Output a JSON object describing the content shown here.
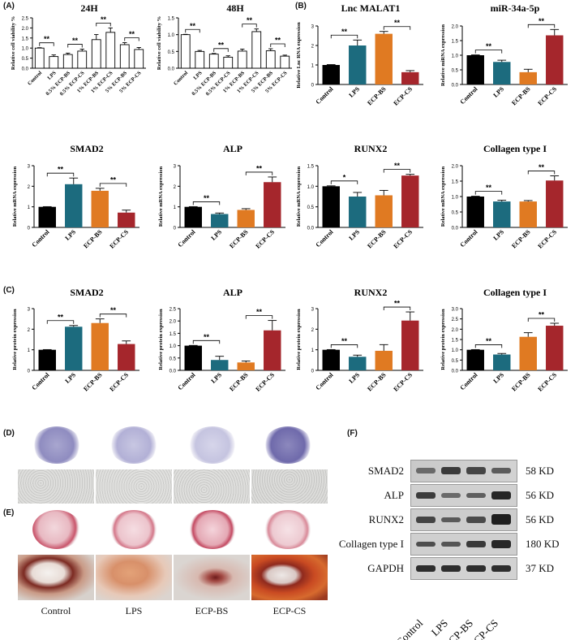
{
  "panels": {
    "A": "(A)",
    "B": "(B)",
    "C": "(C)",
    "D": "(D)",
    "E": "(E)",
    "F": "(F)"
  },
  "colors": {
    "control": "#000000",
    "lps": "#1c6b7e",
    "ecp_bs": "#e07a22",
    "ecp_cs": "#a5262c",
    "open": "#ffffff"
  },
  "chart_data": [
    {
      "id": "a24",
      "type": "bar",
      "title": "24H",
      "ylabel": "Relative cell viability %",
      "ylim": [
        0,
        2.5
      ],
      "yticks": [
        0.0,
        0.5,
        1.0,
        1.5,
        2.0,
        2.5
      ],
      "categories": [
        "Control",
        "LPS",
        "0.5% ECP-BS",
        "0.5% ECP-CS",
        "1% ECP-BS",
        "1% ECP-CS",
        "5% ECP-BS",
        "5% ECP-CS"
      ],
      "values": [
        1.0,
        0.58,
        0.68,
        0.85,
        1.42,
        1.78,
        1.17,
        0.93
      ],
      "errors": [
        0.02,
        0.08,
        0.07,
        0.1,
        0.25,
        0.22,
        0.1,
        0.1
      ],
      "fill": "open",
      "significance": [
        [
          "0",
          "1",
          "**"
        ],
        [
          "2",
          "3",
          "**"
        ],
        [
          "4",
          "5",
          "**"
        ],
        [
          "6",
          "7",
          "**"
        ]
      ]
    },
    {
      "id": "a48",
      "type": "bar",
      "title": "48H",
      "ylabel": "Relative cell viability %",
      "ylim": [
        0,
        1.5
      ],
      "yticks": [
        0.0,
        0.5,
        1.0,
        1.5
      ],
      "categories": [
        "Control",
        "LPS",
        "0.5% ECP-BS",
        "0.5% ECP-CS",
        "1% ECP-BS",
        "1% ECP-CS",
        "5% ECP-BS",
        "5% ECP-CS"
      ],
      "values": [
        1.0,
        0.5,
        0.42,
        0.33,
        0.51,
        1.09,
        0.52,
        0.36
      ],
      "errors": [
        0.01,
        0.03,
        0.02,
        0.04,
        0.06,
        0.08,
        0.06,
        0.03
      ],
      "fill": "open",
      "significance": [
        [
          "0",
          "1",
          "**"
        ],
        [
          "2",
          "3",
          "**"
        ],
        [
          "4",
          "5",
          "**"
        ],
        [
          "6",
          "7",
          "**"
        ]
      ]
    },
    {
      "id": "malat1",
      "type": "bar",
      "title": "Lnc MALAT1",
      "ylabel": "Relative Lnc RNA expression",
      "ylim": [
        0,
        3
      ],
      "yticks": [
        0,
        1,
        2,
        3
      ],
      "categories": [
        "Control",
        "LPS",
        "ECP-BS",
        "ECP-CS"
      ],
      "values": [
        1.0,
        2.0,
        2.6,
        0.63
      ],
      "errors": [
        0.02,
        0.28,
        0.12,
        0.08
      ],
      "fill": "groups",
      "significance": [
        [
          "0",
          "1",
          "**"
        ],
        [
          "2",
          "3",
          "**"
        ]
      ]
    },
    {
      "id": "mir34",
      "type": "bar",
      "title": "miR-34a-5p",
      "ylabel": "Relative miRNA expression",
      "ylim": [
        0,
        2.0
      ],
      "yticks": [
        0.0,
        0.5,
        1.0,
        1.5,
        2.0
      ],
      "categories": [
        "Control",
        "LPS",
        "ECP-BS",
        "ECP-CS"
      ],
      "values": [
        1.0,
        0.77,
        0.42,
        1.68
      ],
      "errors": [
        0.01,
        0.06,
        0.1,
        0.2
      ],
      "fill": "groups",
      "significance": [
        [
          "0",
          "1",
          "**"
        ],
        [
          "2",
          "3",
          "**"
        ]
      ]
    },
    {
      "id": "smad2m",
      "type": "bar",
      "title": "SMAD2",
      "ylabel": "Relative mRNA expression",
      "ylim": [
        0,
        3
      ],
      "yticks": [
        0,
        1,
        2,
        3
      ],
      "categories": [
        "Control",
        "LPS",
        "ECP-BS",
        "ECP-CS"
      ],
      "values": [
        1.0,
        2.1,
        1.78,
        0.72
      ],
      "errors": [
        0.01,
        0.3,
        0.12,
        0.12
      ],
      "fill": "groups",
      "significance": [
        [
          "0",
          "1",
          "**"
        ],
        [
          "2",
          "3",
          "**"
        ]
      ]
    },
    {
      "id": "alpm",
      "type": "bar",
      "title": "ALP",
      "ylabel": "Relative mRNA expression",
      "ylim": [
        0,
        3
      ],
      "yticks": [
        0,
        1,
        2,
        3
      ],
      "categories": [
        "Control",
        "LPS",
        "ECP-BS",
        "ECP-CS"
      ],
      "values": [
        1.0,
        0.65,
        0.85,
        2.2
      ],
      "errors": [
        0.01,
        0.05,
        0.06,
        0.25
      ],
      "fill": "groups",
      "significance": [
        [
          "0",
          "1",
          "**"
        ],
        [
          "2",
          "3",
          "**"
        ]
      ]
    },
    {
      "id": "runx2m",
      "type": "bar",
      "title": "RUNX2",
      "ylabel": "Relative mRNA expression",
      "ylim": [
        0,
        1.5
      ],
      "yticks": [
        0.0,
        0.5,
        1.0,
        1.5
      ],
      "categories": [
        "Control",
        "LPS",
        "ECP-BS",
        "ECP-CS"
      ],
      "values": [
        1.0,
        0.75,
        0.78,
        1.26
      ],
      "errors": [
        0.01,
        0.1,
        0.12,
        0.03
      ],
      "fill": "groups",
      "significance": [
        [
          "0",
          "1",
          "*"
        ],
        [
          "2",
          "3",
          "**"
        ]
      ]
    },
    {
      "id": "colm",
      "type": "bar",
      "title": "Collagen type I",
      "ylabel": "Relative mRNA expression",
      "ylim": [
        0,
        2.0
      ],
      "yticks": [
        0.0,
        0.5,
        1.0,
        1.5,
        2.0
      ],
      "categories": [
        "Control",
        "LPS",
        "ECP-BS",
        "ECP-CS"
      ],
      "values": [
        1.0,
        0.84,
        0.84,
        1.52
      ],
      "errors": [
        0.01,
        0.04,
        0.03,
        0.15
      ],
      "fill": "groups",
      "significance": [
        [
          "0",
          "1",
          "**"
        ],
        [
          "2",
          "3",
          "**"
        ]
      ]
    },
    {
      "id": "smad2p",
      "type": "bar",
      "title": "SMAD2",
      "ylabel": "Relative protein expression",
      "ylim": [
        0,
        3
      ],
      "yticks": [
        0,
        1,
        2,
        3
      ],
      "categories": [
        "Control",
        "LPS",
        "ECP-BS",
        "ECP-CS"
      ],
      "values": [
        1.0,
        2.12,
        2.3,
        1.28
      ],
      "errors": [
        0.01,
        0.06,
        0.2,
        0.15
      ],
      "fill": "groups",
      "significance": [
        [
          "0",
          "1",
          "**"
        ],
        [
          "2",
          "3",
          "**"
        ]
      ]
    },
    {
      "id": "alpp",
      "type": "bar",
      "title": "ALP",
      "ylabel": "Relative protein expression",
      "ylim": [
        0,
        2.5
      ],
      "yticks": [
        0.0,
        0.5,
        1.0,
        1.5,
        2.0,
        2.5
      ],
      "categories": [
        "Control",
        "LPS",
        "ECP-BS",
        "ECP-CS"
      ],
      "values": [
        1.0,
        0.42,
        0.32,
        1.62
      ],
      "errors": [
        0.01,
        0.15,
        0.06,
        0.4
      ],
      "fill": "groups",
      "significance": [
        [
          "0",
          "1",
          "**"
        ],
        [
          "2",
          "3",
          "**"
        ]
      ]
    },
    {
      "id": "runx2p",
      "type": "bar",
      "title": "RUNX2",
      "ylabel": "Relative protein expression",
      "ylim": [
        0,
        3
      ],
      "yticks": [
        0,
        1,
        2,
        3
      ],
      "categories": [
        "Control",
        "LPS",
        "ECP-BS",
        "ECP-CS"
      ],
      "values": [
        1.0,
        0.66,
        0.95,
        2.42
      ],
      "errors": [
        0.01,
        0.08,
        0.3,
        0.42
      ],
      "fill": "groups",
      "significance": [
        [
          "0",
          "1",
          "**"
        ],
        [
          "2",
          "3",
          "**"
        ]
      ]
    },
    {
      "id": "colp",
      "type": "bar",
      "title": "Collagen type I",
      "ylabel": "Relative protein expression",
      "ylim": [
        0,
        3.0
      ],
      "yticks": [
        0.0,
        0.5,
        1.0,
        1.5,
        2.0,
        2.5,
        3.0
      ],
      "categories": [
        "Control",
        "LPS",
        "ECP-BS",
        "ECP-CS"
      ],
      "values": [
        1.0,
        0.77,
        1.63,
        2.17
      ],
      "errors": [
        0.01,
        0.05,
        0.2,
        0.12
      ],
      "fill": "groups",
      "significance": [
        [
          "0",
          "1",
          "**"
        ],
        [
          "2",
          "3",
          "**"
        ]
      ]
    }
  ],
  "bottom_labels": [
    "Control",
    "LPS",
    "ECP-BS",
    "ECP-CS"
  ],
  "western": {
    "proteins": [
      {
        "name": "SMAD2",
        "kd": "58 KD"
      },
      {
        "name": "ALP",
        "kd": "56 KD"
      },
      {
        "name": "RUNX2",
        "kd": "56 KD"
      },
      {
        "name": "Collagen type I",
        "kd": "180 KD"
      },
      {
        "name": "GAPDH",
        "kd": "37 KD"
      }
    ],
    "lanes": [
      "Control",
      "LPS",
      "ECP-BS",
      "ECP-CS"
    ]
  }
}
